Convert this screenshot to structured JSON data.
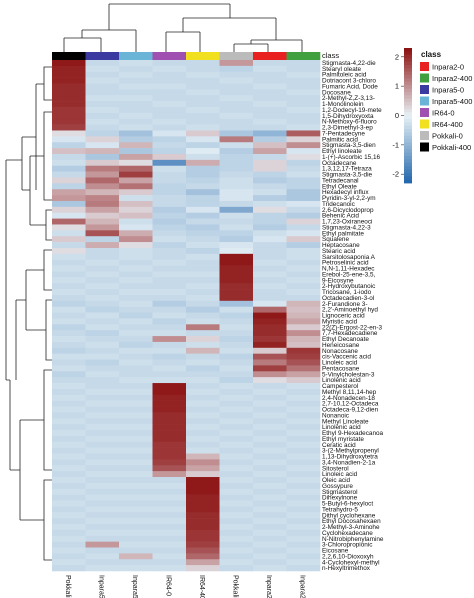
{
  "chart_data": {
    "type": "heatmap",
    "title": "",
    "columns": [
      "Pokkali-400",
      "Inpara5-0",
      "Inpara5-400",
      "IR64-0",
      "IR64-400",
      "Pokkali-0",
      "Inpara2-0",
      "Inpara2-400"
    ],
    "column_class_colors": [
      "#000000",
      "#3a3aa0",
      "#6ab4d8",
      "#a050b0",
      "#f0e020",
      "#bbbbbb",
      "#e82020",
      "#40a040"
    ],
    "column_class_label": "class",
    "rows": [
      "Stigmasta-4,22-die",
      "Stearyl oleate",
      "Palmitoleic acid",
      "Dotriacont 3-chloro",
      "Fumaric Acid, Dode",
      "Docosane",
      "2-Methyl-Z,Z-3,13-",
      "1-Monolinolein",
      "1,2-Dodecyl-19-mete",
      "1,5-Dihydroxyoxta",
      "N-Methoxy-6-fluoro",
      "2,3-Dimethyl-3-ep",
      "7-Pentadecyne",
      "Palmitic acid",
      "Stigmasta-3,5-dien",
      "Ethyl linoleate",
      "1-(+)-Ascorbic 15,16",
      "Octadecane",
      "1,3,12,17-Tetraza",
      "Stigmasta-3,5-die",
      "Tetradecanal",
      "Ethyl Oleate",
      "Hexadecyl influx",
      "Pyridin-3-yl-2,2-ym",
      "Tridecanoic",
      "2,6-Dicyclodoprop",
      "Behenic Acid",
      "1,7,23-Oxiraneoci",
      "Stigmasta-4,22-3",
      "Ethyl palmitate",
      "Squalene",
      "Heptacosane",
      "Stearic acid",
      "Sarsitolosaponia A",
      "Petroselinic acid",
      "N,N-1,11-Hexadec",
      "Erebol-25-ene-3,5,",
      "9-Eicosyne",
      "2-Hydroxybutanoic",
      "Tricosane, 1-iodo",
      "Octadecadien-3-ol",
      "2-Furandione 3-",
      "2,2'-Aminoethyl hyd",
      "Lignoceric acid",
      "Myristic acid",
      "22(Z)-Ergost-22-en-3",
      "7,7-Hexadecadiene",
      "Ethyl Decanoate",
      "Heneicosane",
      "Nonacosane",
      "cis-Vaccenic acid",
      "Linoleic acid",
      "Pentacosane",
      "5-Vinylcholestan-3",
      "Linolenic acid",
      "Campesterol",
      "Methyl 8,11,14-hep",
      "2,4-Nonadecen-18",
      "2,7-10,12-Octadeca",
      "Octadeca-9,12-dien",
      "Nonanoic",
      "Methyl Linoleate",
      "Linolenic acid",
      "Ethyl 9-Hexadecanoa",
      "Ethyl myristate",
      "Ceratic acid",
      "3-(2-Methylpropenyl",
      "1,13-Dihydroxytetra",
      "3,4-Nonadien-2-1a",
      "Sitosterol",
      "Linoleic acid",
      "Oleic acid",
      "Gossypure",
      "Stigmasterol",
      "Dihexylnone",
      "5-Butyl-6-hexyloct",
      "Tetrahydro-5",
      "Dithyl cyclohexane",
      "Ethyl Docosahexaen",
      "2-Methyl-3-Aminohe",
      "Cyclohexadecane",
      "N-Nitrobiphenylamine",
      "3-Chloropropionic",
      "Eicosane",
      "2,2,6,10-Dioxoxyh",
      "4-Cyclohexyl-methyl",
      "n-Hexyltrimethox"
    ],
    "values": [
      [
        2.2,
        -0.4,
        -0.3,
        -0.4,
        -0.4,
        0.9,
        -0.4,
        -0.4
      ],
      [
        2.1,
        -0.3,
        -0.4,
        -0.3,
        -0.4,
        -0.5,
        -0.3,
        -0.4
      ],
      [
        2.1,
        -0.4,
        -0.3,
        -0.4,
        -0.3,
        -0.4,
        -0.4,
        -0.3
      ],
      [
        2.1,
        -0.3,
        -0.4,
        -0.4,
        -0.4,
        -0.3,
        -0.4,
        -0.4
      ],
      [
        2.0,
        -0.4,
        -0.3,
        -0.3,
        -0.4,
        -0.4,
        -0.3,
        -0.4
      ],
      [
        2.0,
        -0.4,
        -0.4,
        -0.4,
        -0.3,
        -0.4,
        -0.4,
        -0.3
      ],
      [
        2.0,
        -0.3,
        -0.3,
        -0.4,
        -0.4,
        -0.3,
        -0.4,
        -0.4
      ],
      [
        2.0,
        -0.4,
        -0.4,
        -0.3,
        -0.4,
        -0.4,
        -0.3,
        -0.4
      ],
      [
        1.9,
        -0.3,
        -0.4,
        -0.4,
        -0.3,
        -0.4,
        -0.4,
        -0.3
      ],
      [
        1.9,
        -0.4,
        -0.3,
        -0.4,
        -0.4,
        -0.3,
        -0.4,
        -0.4
      ],
      [
        1.9,
        -0.3,
        -0.4,
        -0.3,
        -0.4,
        -0.4,
        -0.3,
        -0.4
      ],
      [
        1.8,
        -0.4,
        -0.3,
        -0.4,
        -0.3,
        -0.4,
        -0.4,
        -0.3
      ],
      [
        0.2,
        -0.5,
        -0.8,
        -0.2,
        0.4,
        -0.7,
        -1.0,
        1.5
      ],
      [
        -0.2,
        0.3,
        -0.6,
        -0.5,
        -0.2,
        1.2,
        -0.6,
        0.3
      ],
      [
        -0.5,
        -0.2,
        0.6,
        -0.4,
        -0.5,
        -0.3,
        0.5,
        1.0
      ],
      [
        0.5,
        0.6,
        -0.7,
        -0.5,
        -0.1,
        -0.6,
        0.8,
        -0.2
      ],
      [
        -0.4,
        -0.7,
        0.8,
        0.4,
        -0.3,
        -0.5,
        -0.4,
        0.2
      ],
      [
        -0.3,
        0.4,
        0.2,
        -1.6,
        0.7,
        -0.5,
        0.3,
        -0.5
      ],
      [
        -0.6,
        1.2,
        1.4,
        -0.3,
        -0.6,
        -0.5,
        0.3,
        -0.4
      ],
      [
        -0.4,
        0.9,
        1.8,
        -0.4,
        -0.6,
        -0.4,
        -0.5,
        -0.3
      ],
      [
        0.3,
        1.4,
        0.8,
        -0.4,
        -0.5,
        -0.3,
        -0.6,
        -0.5
      ],
      [
        -0.5,
        1.0,
        1.3,
        -0.5,
        -0.4,
        -0.3,
        -0.4,
        -0.5
      ],
      [
        0.8,
        0.6,
        0.4,
        -0.5,
        -0.8,
        -0.2,
        -0.3,
        -0.7
      ],
      [
        0.9,
        1.1,
        -0.3,
        -0.4,
        -0.5,
        -0.2,
        -0.6,
        -0.7
      ],
      [
        -0.7,
        1.2,
        0.5,
        -0.4,
        -0.5,
        -0.4,
        -0.3,
        -0.2
      ],
      [
        0.3,
        0.8,
        0.3,
        -0.6,
        -0.2,
        -1.2,
        0.2,
        -0.4
      ],
      [
        -0.2,
        0.4,
        0.5,
        -0.5,
        -0.6,
        -0.3,
        -0.5,
        -0.6
      ],
      [
        1.4,
        0.6,
        -0.3,
        -0.6,
        -0.4,
        -0.4,
        -0.5,
        0.3
      ],
      [
        0.2,
        0.9,
        -0.2,
        -0.5,
        -0.6,
        -0.3,
        -0.6,
        -0.4
      ],
      [
        -0.3,
        1.6,
        0.7,
        -0.4,
        -0.5,
        -0.5,
        -0.3,
        -0.2
      ],
      [
        0.4,
        -0.5,
        1.0,
        -0.3,
        -0.4,
        -0.6,
        -0.2,
        0.4
      ],
      [
        -0.4,
        0.7,
        0.2,
        -0.5,
        -0.3,
        -0.2,
        -0.4,
        -0.6
      ],
      [
        0.2,
        -0.4,
        -0.3,
        -0.4,
        -0.5,
        -0.1,
        -0.4,
        -0.3
      ],
      [
        -0.3,
        -0.4,
        -0.3,
        -0.4,
        -0.3,
        2.2,
        -0.4,
        -0.3
      ],
      [
        -0.4,
        -0.3,
        -0.4,
        -0.3,
        -0.4,
        2.2,
        -0.3,
        -0.4
      ],
      [
        -0.3,
        -0.4,
        -0.3,
        -0.4,
        -0.4,
        2.1,
        -0.4,
        -0.3
      ],
      [
        -0.4,
        -0.3,
        -0.4,
        -0.3,
        -0.3,
        2.1,
        -0.3,
        -0.4
      ],
      [
        -0.3,
        -0.4,
        -0.3,
        -0.4,
        -0.4,
        2.1,
        -0.4,
        -0.3
      ],
      [
        -0.4,
        -0.3,
        -0.4,
        -0.4,
        -0.3,
        2.0,
        -0.3,
        -0.4
      ],
      [
        -0.3,
        -0.4,
        -0.3,
        -0.3,
        -0.4,
        2.0,
        -0.4,
        -0.3
      ],
      [
        -0.4,
        -0.3,
        -0.4,
        -0.4,
        -0.3,
        2.0,
        -0.4,
        -0.4
      ],
      [
        -0.5,
        -0.4,
        -0.3,
        -0.6,
        -0.4,
        -0.8,
        -0.2,
        0.6
      ],
      [
        -0.3,
        -0.5,
        -0.4,
        -0.4,
        -0.6,
        -0.3,
        1.4,
        0.5
      ],
      [
        -0.4,
        -0.3,
        -0.5,
        -0.3,
        -0.4,
        -0.5,
        2.2,
        0.6
      ],
      [
        -0.3,
        -0.4,
        -0.3,
        -0.5,
        -0.3,
        -0.4,
        2.1,
        0.8
      ],
      [
        -0.5,
        -0.3,
        -0.4,
        -0.4,
        1.2,
        -0.3,
        2.0,
        0.4
      ],
      [
        -0.4,
        -0.5,
        -0.3,
        -0.3,
        -0.4,
        -0.4,
        2.0,
        1.0
      ],
      [
        -0.3,
        -0.4,
        -0.4,
        1.0,
        0.3,
        -0.5,
        1.9,
        0.6
      ],
      [
        -0.4,
        -0.3,
        -0.5,
        -0.4,
        -0.3,
        -0.4,
        2.1,
        0.5
      ],
      [
        -0.5,
        -0.4,
        -0.3,
        -0.3,
        0.6,
        -0.3,
        0.4,
        1.9
      ],
      [
        -0.3,
        -0.3,
        -0.4,
        -0.5,
        -0.4,
        -0.5,
        1.6,
        1.8
      ],
      [
        -0.4,
        -0.5,
        -0.3,
        -0.4,
        -0.3,
        -0.4,
        1.2,
        1.6
      ],
      [
        -0.3,
        -0.4,
        -0.4,
        -0.3,
        -0.5,
        -0.3,
        1.8,
        1.3
      ],
      [
        -0.5,
        -0.3,
        -0.4,
        -0.4,
        -0.4,
        -0.4,
        1.0,
        0.8
      ],
      [
        -0.4,
        -0.4,
        -0.3,
        -0.3,
        -0.3,
        -0.5,
        0.2,
        0.4
      ],
      [
        -0.3,
        -0.4,
        -0.4,
        2.2,
        -0.4,
        -0.3,
        -0.4,
        -0.3
      ],
      [
        -0.4,
        -0.3,
        -0.3,
        2.2,
        -0.3,
        -0.4,
        -0.3,
        -0.4
      ],
      [
        -0.3,
        -0.4,
        -0.4,
        2.1,
        -0.4,
        -0.3,
        -0.4,
        -0.3
      ],
      [
        -0.4,
        -0.3,
        -0.3,
        2.1,
        -0.3,
        -0.4,
        -0.3,
        -0.4
      ],
      [
        -0.3,
        -0.4,
        -0.4,
        2.1,
        -0.4,
        -0.3,
        -0.4,
        -0.3
      ],
      [
        -0.4,
        -0.3,
        -0.3,
        2.0,
        -0.3,
        -0.4,
        -0.3,
        -0.4
      ],
      [
        -0.3,
        -0.4,
        -0.4,
        2.0,
        -0.4,
        -0.3,
        -0.4,
        -0.3
      ],
      [
        -0.4,
        -0.3,
        -0.3,
        2.0,
        -0.3,
        -0.4,
        -0.3,
        -0.4
      ],
      [
        -0.3,
        -0.4,
        -0.4,
        2.0,
        -0.4,
        -0.3,
        -0.4,
        -0.3
      ],
      [
        -0.4,
        -0.3,
        -0.3,
        2.0,
        -0.3,
        -0.4,
        -0.3,
        -0.4
      ],
      [
        -0.3,
        -0.4,
        -0.4,
        1.9,
        -0.4,
        -0.3,
        -0.4,
        -0.3
      ],
      [
        -0.4,
        -0.3,
        -0.3,
        1.9,
        -0.3,
        -0.4,
        -0.3,
        -0.4
      ],
      [
        -0.3,
        -0.4,
        -0.4,
        1.9,
        0.6,
        -0.3,
        -0.4,
        -0.3
      ],
      [
        -0.4,
        -0.3,
        -0.3,
        1.8,
        1.0,
        -0.4,
        -0.3,
        -0.4
      ],
      [
        -0.3,
        -0.4,
        -0.4,
        1.6,
        0.8,
        -0.3,
        -0.4,
        -0.3
      ],
      [
        -0.4,
        -0.3,
        -0.3,
        0.9,
        0.4,
        -0.4,
        -0.3,
        -0.4
      ],
      [
        -0.3,
        -0.4,
        -0.4,
        -0.4,
        2.2,
        -0.3,
        -0.4,
        -0.3
      ],
      [
        -0.4,
        -0.3,
        -0.3,
        -0.3,
        2.2,
        -0.4,
        -0.3,
        -0.4
      ],
      [
        -0.3,
        -0.4,
        -0.4,
        -0.4,
        2.2,
        -0.3,
        -0.4,
        -0.3
      ],
      [
        -0.4,
        -0.3,
        -0.3,
        -0.3,
        2.1,
        -0.4,
        -0.3,
        -0.4
      ],
      [
        -0.3,
        -0.4,
        -0.4,
        -0.4,
        2.1,
        -0.3,
        -0.4,
        -0.3
      ],
      [
        -0.4,
        -0.3,
        -0.3,
        -0.3,
        2.1,
        -0.4,
        -0.3,
        -0.4
      ],
      [
        -0.3,
        -0.4,
        -0.4,
        -0.4,
        2.0,
        -0.3,
        -0.4,
        -0.3
      ],
      [
        -0.4,
        -0.3,
        -0.3,
        -0.3,
        2.0,
        -0.4,
        -0.3,
        -0.4
      ],
      [
        -0.3,
        -0.4,
        -0.4,
        -0.4,
        2.0,
        -0.3,
        -0.4,
        -0.3
      ],
      [
        -0.4,
        -0.3,
        -0.3,
        -0.3,
        1.9,
        -0.4,
        -0.3,
        -0.4
      ],
      [
        -0.3,
        -0.4,
        -0.4,
        -0.4,
        1.9,
        -0.3,
        -0.4,
        -0.3
      ],
      [
        -0.4,
        0.9,
        -0.3,
        -0.3,
        1.8,
        -0.4,
        -0.3,
        -0.4
      ],
      [
        -0.3,
        -0.4,
        -0.4,
        -0.4,
        1.6,
        -0.3,
        -0.4,
        -0.3
      ],
      [
        -0.4,
        -0.3,
        0.6,
        -0.3,
        1.4,
        -0.4,
        -0.3,
        -0.4
      ],
      [
        -0.3,
        -0.4,
        -0.4,
        -0.4,
        0.8,
        -0.3,
        -0.4,
        -0.3
      ],
      [
        -0.4,
        -0.3,
        -0.3,
        -0.3,
        0.3,
        -0.4,
        -0.3,
        -0.4
      ]
    ],
    "color_scale": {
      "min": -2.3,
      "max": 2.3,
      "ticks": [
        2,
        1,
        0,
        -1,
        -2
      ],
      "low_color": "#2166ac",
      "mid_color": "#e8f1f6",
      "high_color": "#8b0e0e"
    },
    "legend": {
      "title": "class",
      "placement": "right",
      "entries": [
        {
          "label": "Inpara2-0",
          "color": "#e82020"
        },
        {
          "label": "Inpara2-400",
          "color": "#40a040"
        },
        {
          "label": "Inpara5-0",
          "color": "#3a3aa0"
        },
        {
          "label": "Inpara5-400",
          "color": "#6ab4d8"
        },
        {
          "label": "IR64-0",
          "color": "#a050b0"
        },
        {
          "label": "IR64-400",
          "color": "#f0e020"
        },
        {
          "label": "Pokkali-0",
          "color": "#bbbbbb"
        },
        {
          "label": "Pokkali-400",
          "color": "#000000"
        }
      ]
    },
    "grid": false
  }
}
